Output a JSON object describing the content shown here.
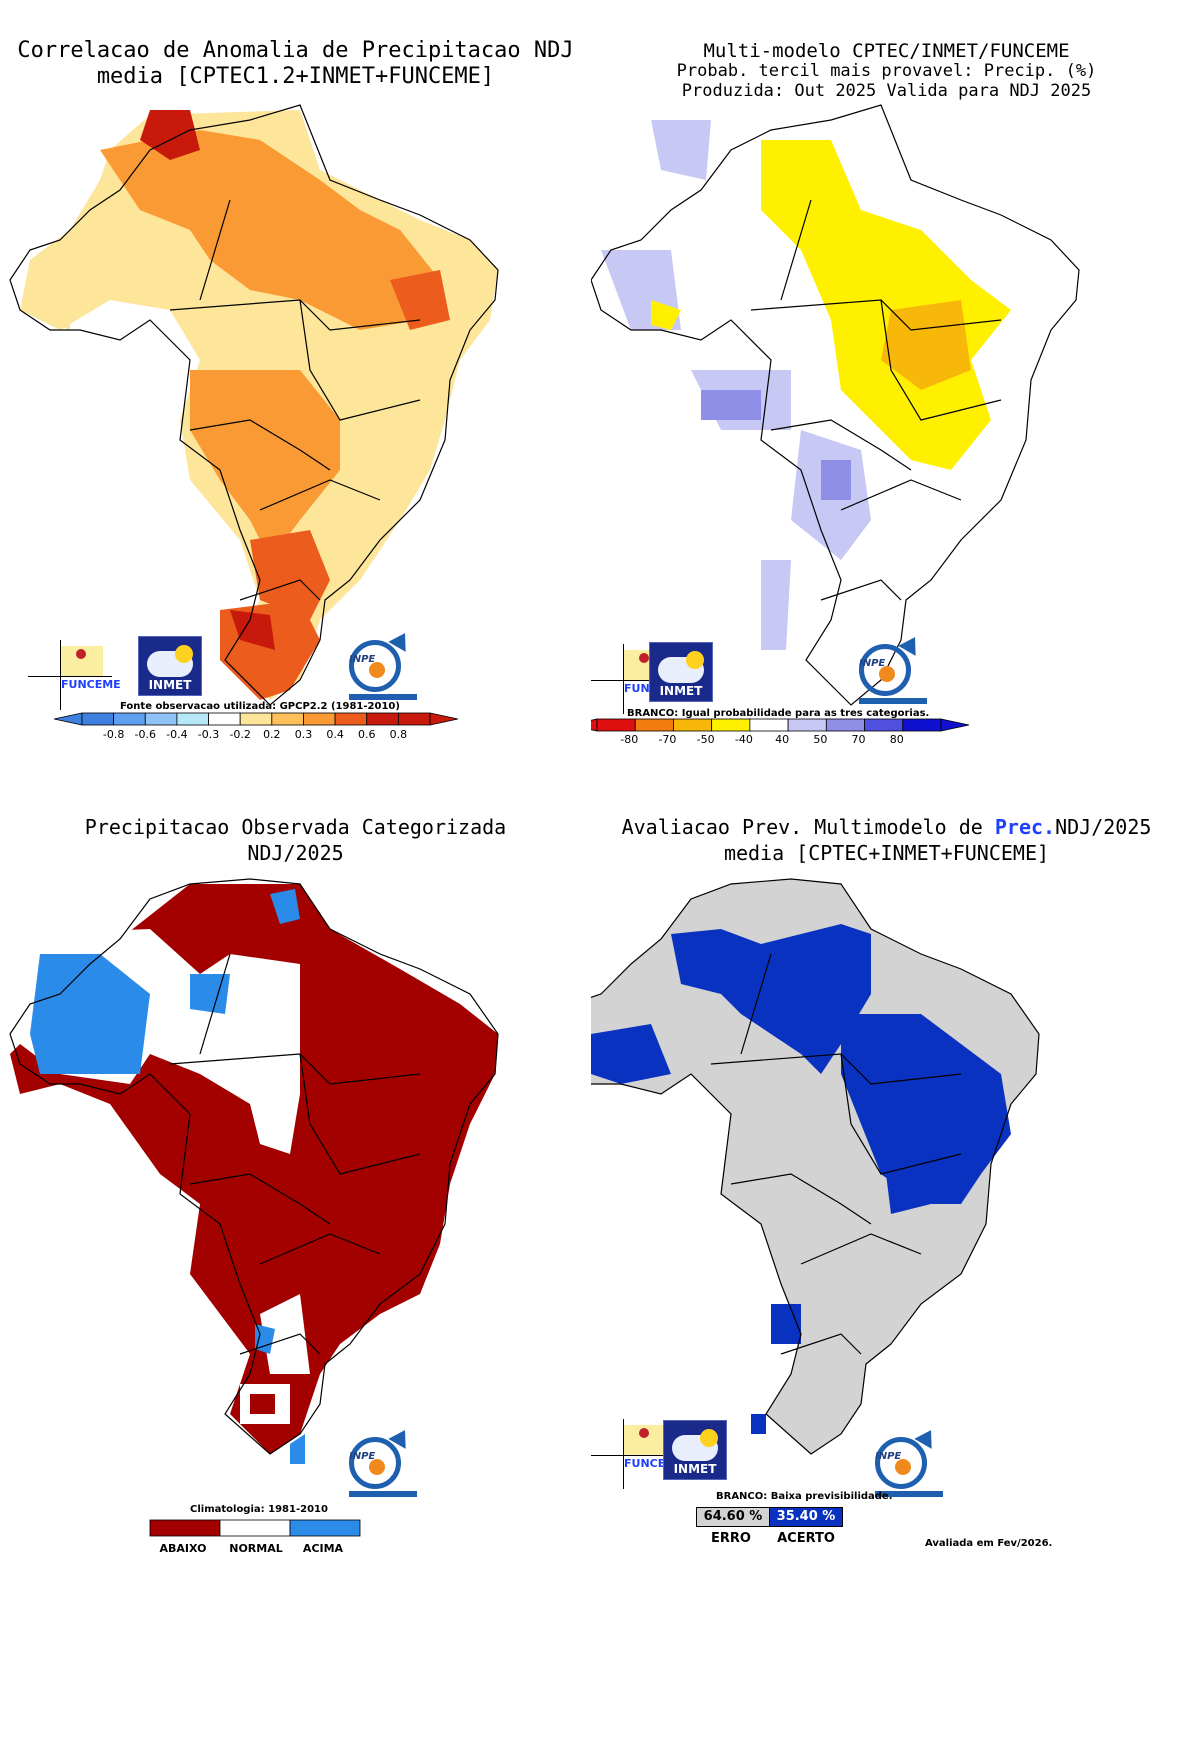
{
  "panels": {
    "corr": {
      "title1": "Correlacao de Anomalia de Precipitacao NDJ",
      "title2": "media [CPTEC1.2+INMET+FUNCEME]",
      "note": "Fonte observacao utilizada: GPCP2.2 (1981-2010)",
      "ticks": [
        "-0.8",
        "-0.6",
        "-0.4",
        "-0.3",
        "-0.2",
        "0.2",
        "0.3",
        "0.4",
        "0.6",
        "0.8"
      ],
      "colors": [
        "#3f7fe0",
        "#5f9ff0",
        "#8fc3f7",
        "#b7e8f5",
        "#ffffff",
        "#fde59a",
        "#fdc05a",
        "#f99a34",
        "#ec5c1c",
        "#c81a0c"
      ]
    },
    "prob": {
      "title1": "Multi-modelo CPTEC/INMET/FUNCEME",
      "title2": "Probab. tercil mais provavel: Precip. (%)",
      "title3": "Produzida: Out 2025  Valida para NDJ 2025",
      "note": "BRANCO: Igual probabilidade para as tres categorias.",
      "ticks": [
        "-80",
        "-70",
        "-50",
        "-40",
        "40",
        "50",
        "70",
        "80"
      ],
      "colors": [
        "#e01010",
        "#f27e10",
        "#f8b80a",
        "#fff000",
        "#ffffff",
        "#c8c8f5",
        "#8f8fe8",
        "#5050e0",
        "#1010d0"
      ]
    },
    "obs": {
      "title1": "Precipitacao Observada Categorizada",
      "title2": "NDJ/2025",
      "note": "Climatologia: 1981-2010",
      "categories": [
        "ABAIXO",
        "NORMAL",
        "ACIMA"
      ],
      "colors": [
        "#a30000",
        "#ffffff",
        "#2a8be8"
      ]
    },
    "eval": {
      "title1_pre": "Avaliacao Prev. Multimodelo de ",
      "title1_hi": "Prec.",
      "title1_post": "NDJ/2025",
      "title2": "media [CPTEC+INMET+FUNCEME]",
      "note": "BRANCO: Baixa previsibilidade.",
      "erro_value": "64.60 %",
      "acerto_value": "35.40 %",
      "erro_label": "ERRO",
      "acerto_label": "ACERTO",
      "erro_percent": 64.6,
      "acerto_percent": 35.4,
      "footer": "Avaliada em Fev/2026.",
      "colors": {
        "erro": "#d3d3d3",
        "acerto": "#0a32c0"
      }
    }
  },
  "logos": {
    "funceme": "FUNCEME",
    "inmet": "INMET",
    "inpe": "INPE"
  }
}
